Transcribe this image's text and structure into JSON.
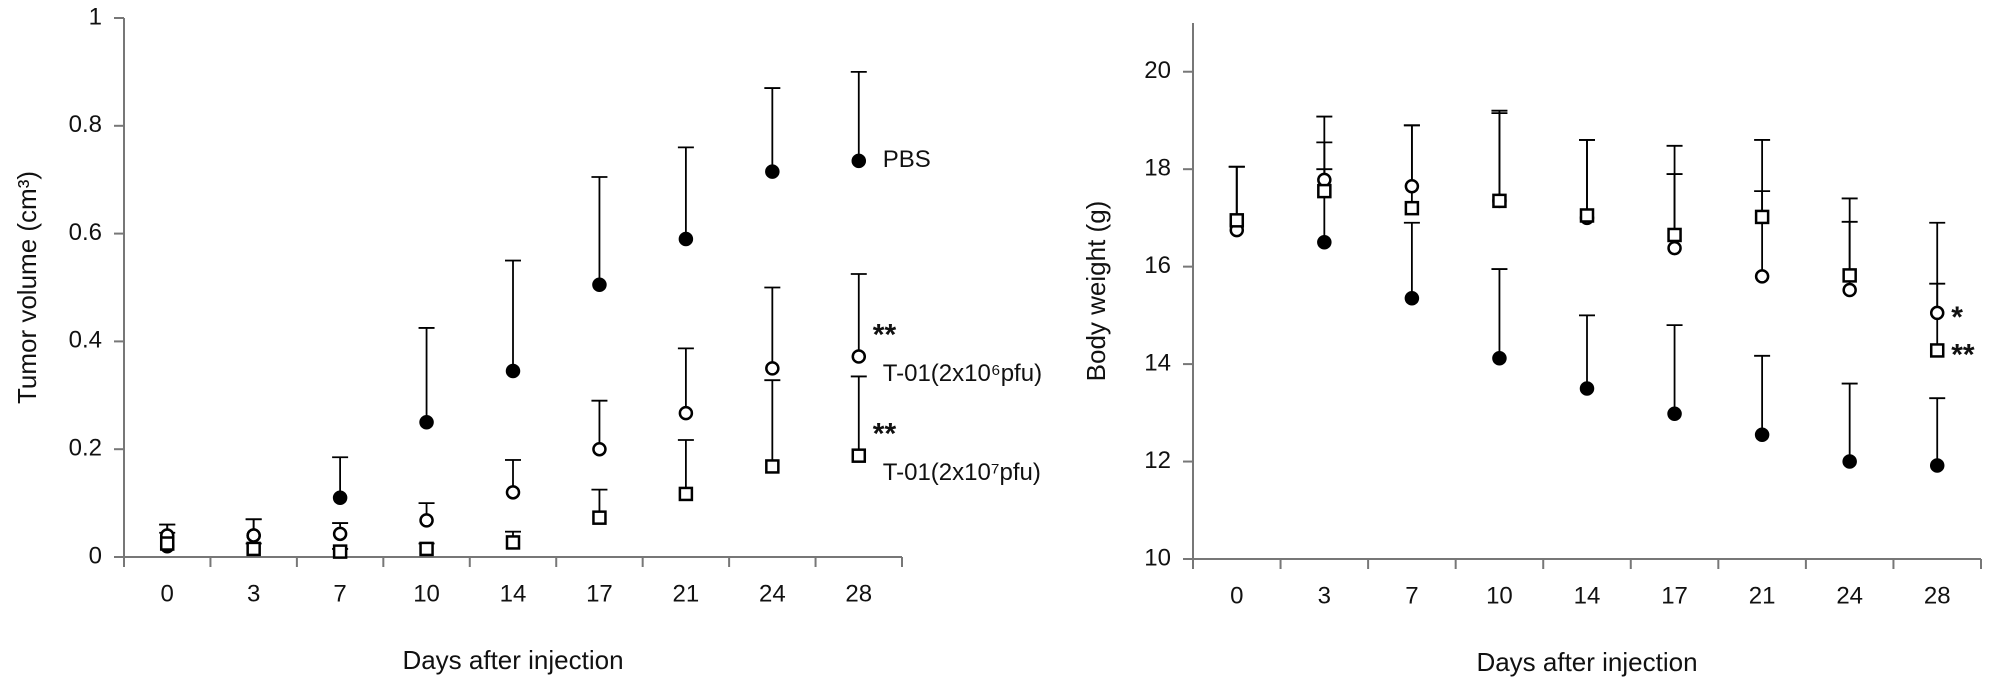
{
  "chart_data": [
    {
      "type": "line",
      "ylabel": "Tumor volume (cm³)",
      "xlabel": "Days after injection",
      "categories": [
        "0",
        "3",
        "7",
        "10",
        "14",
        "17",
        "21",
        "24",
        "28"
      ],
      "ylim": [
        0,
        1
      ],
      "yticks": [
        0,
        0.2,
        0.4,
        0.6,
        0.8,
        1
      ],
      "series": [
        {
          "name": "PBS",
          "color": "#000000",
          "marker": "filled-circle",
          "dash": "solid",
          "values": [
            0.02,
            0.04,
            0.11,
            0.25,
            0.345,
            0.505,
            0.59,
            0.715,
            0.735
          ],
          "errors": [
            0.04,
            0.03,
            0.075,
            0.175,
            0.205,
            0.2,
            0.17,
            0.155,
            0.165
          ]
        },
        {
          "name": "T-01(2x10⁶pfu)",
          "color": "#000000",
          "marker": "circle",
          "dash": "dashed",
          "annotation": "**",
          "values": [
            0.04,
            0.04,
            0.043,
            0.068,
            0.12,
            0.2,
            0.267,
            0.35,
            0.372
          ],
          "errors": [
            0.02,
            0.03,
            0.02,
            0.032,
            0.06,
            0.09,
            0.12,
            0.15,
            0.153
          ]
        },
        {
          "name": "T-01(2x10⁷pfu)",
          "color": "#000000",
          "marker": "square",
          "dash": "dotted",
          "annotation": "**",
          "values": [
            0.025,
            0.015,
            0.01,
            0.015,
            0.027,
            0.073,
            0.117,
            0.168,
            0.188
          ],
          "errors": [
            0.02,
            0.01,
            0.005,
            0.01,
            0.02,
            0.052,
            0.1,
            0.16,
            0.147
          ]
        }
      ]
    },
    {
      "type": "line",
      "ylabel": "Body weight (g)",
      "xlabel": "Days after injection",
      "categories": [
        "0",
        "3",
        "7",
        "10",
        "14",
        "17",
        "21",
        "24",
        "28"
      ],
      "ylim": [
        10,
        21
      ],
      "yticks": [
        10,
        12,
        14,
        16,
        18,
        20
      ],
      "series": [
        {
          "color": "#000000",
          "marker": "filled-circle",
          "dash": "solid",
          "values": [
            16.85,
            16.5,
            15.35,
            14.12,
            13.5,
            12.98,
            12.55,
            12.0,
            11.92
          ],
          "errors": [
            1.2,
            1.5,
            1.55,
            1.83,
            1.5,
            1.82,
            1.62,
            1.6,
            1.38
          ]
        },
        {
          "color": "#000000",
          "marker": "circle",
          "dash": "dashed",
          "annotation": "*",
          "values": [
            16.75,
            17.78,
            17.65,
            17.35,
            17.0,
            16.38,
            15.8,
            15.52,
            15.05
          ],
          "errors": [
            1.3,
            1.3,
            1.25,
            1.8,
            1.6,
            1.52,
            1.75,
            1.4,
            1.85
          ]
        },
        {
          "color": "#000000",
          "marker": "square",
          "dash": "dashed",
          "annotation": "**",
          "values": [
            16.95,
            17.55,
            17.2,
            17.35,
            17.05,
            16.65,
            17.02,
            15.82,
            14.28
          ],
          "errors": [
            1.1,
            1.0,
            1.7,
            1.85,
            1.55,
            1.83,
            1.58,
            1.58,
            1.37
          ]
        }
      ]
    }
  ]
}
